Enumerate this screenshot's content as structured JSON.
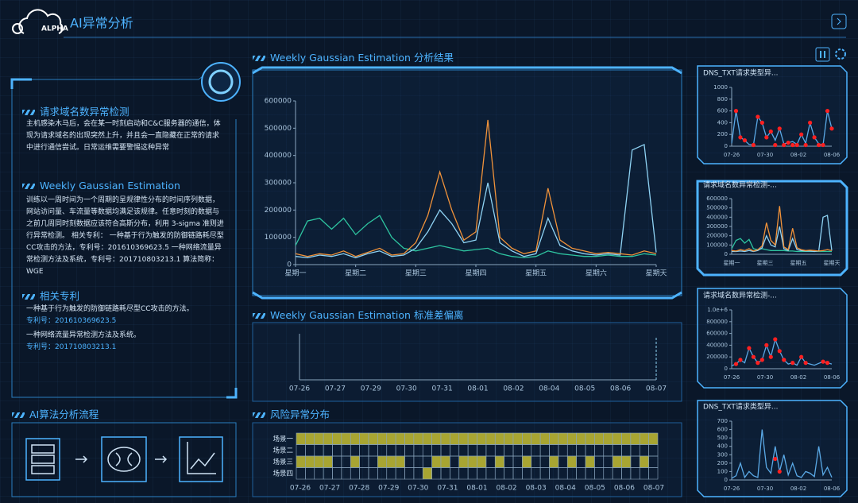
{
  "header": {
    "logo": "ALPHA",
    "title": "AI异常分析"
  },
  "left_panel": {
    "sections": [
      {
        "title": "请求域名数异常检测",
        "text": "主机感染木马后，会在某一时刻启动和C&C服务器的通信，体现为请求域名的出现突然上升，并且会一直隐藏在正常的请求中进行通信尝试。日常运维需要警惕这种异常"
      },
      {
        "title": "Weekly Gaussian Estimation",
        "text": "训练以一周时间为一个周期的呈规律性分布的时间序列数据，网站访问量、车流量等数据均满足该规律。任意时刻的数据与之前几周同时刻数据应该符合高斯分布，利用 3-sigma 准则进行异常检测。 相关专利： 一种基于行为触发的防御链路耗尽型CC攻击的方法，专利号：201610369623.5 一种网络流量异常检测方法及系统，专利号：201710803213.1 算法简称：WGE"
      }
    ],
    "patents": {
      "title": "相关专利",
      "items": [
        {
          "text": "一种基于行为触发的防御链路耗尽型CC攻击的方法。",
          "label": "专利号：",
          "number": "201610369623.5"
        },
        {
          "text": "一种网络流量异常检测方法及系统。",
          "label": "专利号：",
          "number": "201710803213.1"
        }
      ]
    }
  },
  "flow": {
    "title": "AI算法分析流程"
  },
  "chart_data": [
    {
      "type": "line",
      "title": "Weekly Gaussian Estimation 分析结果",
      "x": [
        0,
        0.2,
        0.4,
        0.6,
        0.8,
        1,
        1.2,
        1.4,
        1.6,
        1.8,
        2,
        2.2,
        2.4,
        2.6,
        2.8,
        3,
        3.2,
        3.4,
        3.6,
        3.8,
        4,
        4.2,
        4.4,
        4.6,
        4.8,
        5,
        5.2,
        5.4,
        5.6,
        5.8,
        6
      ],
      "xlim": [
        0,
        6
      ],
      "xticks": [
        {
          "value": 0,
          "label": "星期一"
        },
        {
          "value": 1,
          "label": "星期二"
        },
        {
          "value": 2,
          "label": "星期三"
        },
        {
          "value": 3,
          "label": "星期四"
        },
        {
          "value": 4,
          "label": "星期五"
        },
        {
          "value": 5,
          "label": "星期六"
        },
        {
          "value": 6,
          "label": "星期天"
        }
      ],
      "ylim": [
        0,
        600000
      ],
      "yticks": [
        0,
        100000,
        200000,
        300000,
        400000,
        500000,
        600000
      ],
      "series": [
        {
          "color": "#2ec4a0",
          "values": [
            70000,
            160000,
            170000,
            130000,
            170000,
            110000,
            150000,
            180000,
            100000,
            60000,
            50000,
            60000,
            70000,
            60000,
            50000,
            55000,
            60000,
            40000,
            30000,
            25000,
            30000,
            50000,
            40000,
            35000,
            30000,
            30000,
            35000,
            30000,
            30000,
            40000,
            35000
          ]
        },
        {
          "color": "#8fd3f4",
          "values": [
            30000,
            25000,
            35000,
            30000,
            40000,
            25000,
            40000,
            50000,
            30000,
            35000,
            60000,
            120000,
            200000,
            150000,
            80000,
            90000,
            300000,
            80000,
            50000,
            30000,
            40000,
            170000,
            70000,
            50000,
            40000,
            35000,
            40000,
            35000,
            420000,
            440000,
            45000
          ]
        },
        {
          "color": "#f0923a",
          "values": [
            40000,
            30000,
            40000,
            35000,
            50000,
            30000,
            45000,
            60000,
            35000,
            40000,
            80000,
            180000,
            340000,
            200000,
            90000,
            120000,
            530000,
            100000,
            60000,
            40000,
            50000,
            280000,
            90000,
            60000,
            50000,
            40000,
            45000,
            40000,
            35000,
            50000,
            40000
          ]
        }
      ]
    },
    {
      "type": "line",
      "title": "Weekly Gaussian Estimation 标准差偏离",
      "xtick_labels": [
        "07-26",
        "07-27",
        "07-29",
        "07-30",
        "07-31",
        "08-01",
        "08-02",
        "08-04",
        "08-05",
        "08-06",
        "08-07"
      ],
      "series": []
    },
    {
      "type": "heatmap",
      "title": "风险异常分布",
      "rows": [
        "场景一",
        "场景二",
        "场景三",
        "场景四"
      ],
      "xtick_labels": [
        "07-26",
        "07-27",
        "07-28",
        "07-29",
        "07-30",
        "07-31",
        "08-01",
        "08-02",
        "08-03",
        "08-04",
        "08-05",
        "08-06",
        "08-07"
      ],
      "color": "#a8a532",
      "values": [
        [
          1,
          1,
          1,
          1,
          1,
          1,
          1,
          1,
          1,
          1,
          1,
          1,
          1,
          1,
          1,
          1,
          1,
          1,
          1,
          1,
          1,
          1,
          1,
          1,
          1,
          1,
          1,
          1,
          1,
          1,
          1,
          1,
          1,
          1,
          1,
          1,
          1,
          1,
          1,
          1
        ],
        [
          0,
          0,
          0,
          0,
          0,
          0,
          0,
          0,
          0,
          0,
          0,
          0,
          0,
          0,
          0,
          0,
          0,
          0,
          0,
          0,
          0,
          0,
          0,
          0,
          0,
          0,
          0,
          0,
          0,
          0,
          0,
          0,
          0,
          0,
          0,
          0,
          0,
          0,
          0,
          0
        ],
        [
          1,
          1,
          1,
          1,
          0,
          0,
          1,
          0,
          0,
          1,
          1,
          1,
          0,
          0,
          0,
          1,
          1,
          0,
          1,
          1,
          1,
          0,
          1,
          0,
          0,
          1,
          0,
          0,
          1,
          0,
          1,
          0,
          1,
          0,
          0,
          1,
          1,
          0,
          1,
          0
        ],
        [
          0,
          0,
          0,
          0,
          0,
          0,
          0,
          0,
          0,
          0,
          0,
          0,
          0,
          0,
          1,
          0,
          0,
          0,
          0,
          0,
          0,
          0,
          0,
          0,
          0,
          0,
          0,
          0,
          0,
          0,
          0,
          0,
          0,
          0,
          0,
          0,
          0,
          0,
          0,
          0
        ]
      ]
    },
    {
      "type": "line",
      "title": "DNS_TXT请求类型异...",
      "xtick_labels": [
        "07-26",
        "07-30",
        "08-02",
        "08-06"
      ],
      "ylim": [
        0,
        1000
      ],
      "yticks": [
        0,
        200,
        400,
        600,
        800,
        1000
      ],
      "series": [
        {
          "color": "#5aa9e6",
          "values": [
            50,
            600,
            150,
            100,
            30,
            20,
            500,
            400,
            150,
            250,
            100,
            300,
            40,
            60,
            80,
            30,
            200,
            50,
            400,
            150,
            40,
            20,
            600,
            300
          ]
        },
        {
          "color": "#ff2020",
          "marker": "dot",
          "values": [
            null,
            600,
            150,
            100,
            null,
            20,
            500,
            400,
            150,
            250,
            20,
            300,
            20,
            60,
            20,
            20,
            200,
            20,
            400,
            150,
            20,
            20,
            600,
            300
          ]
        }
      ]
    },
    {
      "type": "line",
      "title": "请求域名数异常检测-...",
      "xtick_labels": [
        "星期一",
        "星期三",
        "星期五",
        "星期天"
      ],
      "ylim": [
        0,
        600000
      ],
      "yticks": [
        0,
        100000,
        200000,
        300000,
        400000,
        500000,
        600000
      ],
      "series": [
        {
          "color": "#2ec4a0",
          "values": [
            60000,
            150000,
            170000,
            120000,
            160000,
            60000,
            50000,
            60000,
            50000,
            40000,
            40000,
            40000,
            40000,
            35000,
            35000,
            30000,
            30000,
            30000,
            30000,
            30000,
            30000,
            30000,
            30000,
            30000
          ]
        },
        {
          "color": "#8fd3f4",
          "values": [
            30000,
            30000,
            35000,
            30000,
            40000,
            30000,
            40000,
            70000,
            200000,
            100000,
            80000,
            300000,
            60000,
            40000,
            170000,
            50000,
            40000,
            35000,
            35000,
            30000,
            35000,
            400000,
            420000,
            40000
          ]
        },
        {
          "color": "#f0923a",
          "values": [
            40000,
            35000,
            50000,
            40000,
            60000,
            35000,
            50000,
            90000,
            340000,
            150000,
            100000,
            520000,
            80000,
            50000,
            280000,
            70000,
            50000,
            40000,
            45000,
            40000,
            35000,
            40000,
            50000,
            40000
          ]
        }
      ]
    },
    {
      "type": "line",
      "title": "请求域名数异常检测-...",
      "xtick_labels": [
        "07-26",
        "07-30",
        "08-02",
        "08-06"
      ],
      "ylim": [
        0,
        1000000
      ],
      "yticks": [
        0,
        200000,
        400000,
        600000,
        800000,
        {
          "value": 1000000,
          "label": "1.0e+6"
        }
      ],
      "series": [
        {
          "color": "#5aa9e6",
          "values": [
            50000,
            80000,
            150000,
            100000,
            350000,
            200000,
            100000,
            150000,
            400000,
            200000,
            500000,
            300000,
            150000,
            80000,
            100000,
            60000,
            200000,
            100000,
            80000,
            60000,
            90000,
            120000,
            100000,
            80000
          ]
        },
        {
          "color": "#ff2020",
          "marker": "dot",
          "values": [
            null,
            80000,
            150000,
            null,
            350000,
            200000,
            100000,
            150000,
            400000,
            200000,
            500000,
            300000,
            150000,
            null,
            100000,
            null,
            200000,
            100000,
            null,
            null,
            null,
            120000,
            100000,
            null
          ]
        }
      ]
    },
    {
      "type": "line",
      "title": "DNS_TXT请求类型异...",
      "xtick_labels": [
        "07-26",
        "07-30",
        "08-02",
        "08-06"
      ],
      "ylim": [
        0,
        700
      ],
      "yticks": [
        0,
        100,
        200,
        300,
        400,
        500,
        600,
        700
      ],
      "series": [
        {
          "color": "#5aa9e6",
          "values": [
            20,
            50,
            200,
            30,
            100,
            50,
            30,
            600,
            150,
            80,
            400,
            100,
            300,
            60,
            200,
            50,
            30,
            100,
            80,
            40,
            400,
            60,
            150,
            30
          ]
        },
        {
          "color": "#ff2020",
          "marker": "dot",
          "values": [
            null,
            null,
            null,
            null,
            null,
            null,
            null,
            null,
            null,
            null,
            250,
            100,
            null,
            null,
            null,
            null,
            null,
            null,
            null,
            null,
            null,
            null,
            null,
            null
          ]
        }
      ]
    }
  ]
}
